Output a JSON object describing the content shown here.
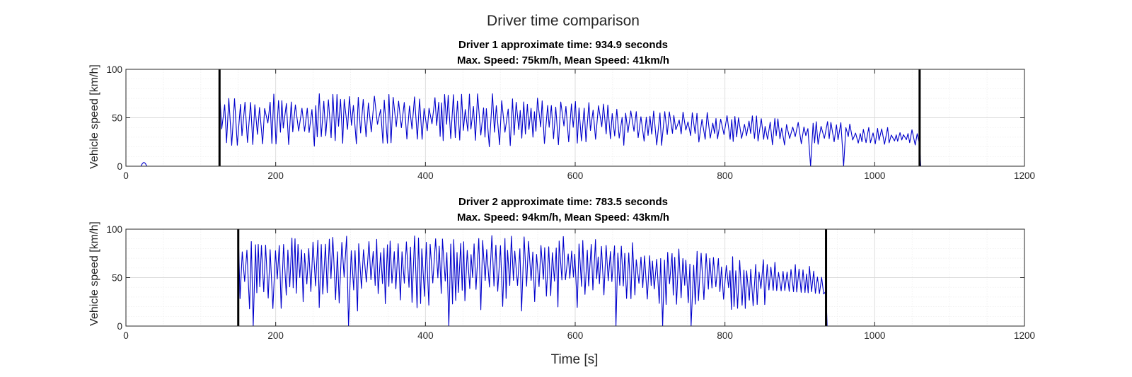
{
  "figure_title": "Driver time comparison",
  "chart_data": [
    {
      "type": "line",
      "title": "Driver 1 approximate time: 934.9 seconds",
      "subtitle": "Max. Speed: 75km/h, Mean Speed: 41km/h",
      "xlabel": "",
      "ylabel": "Vehicle speed [km/h]",
      "xlim": [
        0,
        1200
      ],
      "ylim": [
        0,
        100
      ],
      "xticks": [
        0,
        200,
        400,
        600,
        800,
        1000,
        1200
      ],
      "yticks": [
        0,
        50,
        100
      ],
      "grid": true,
      "line_color": "#0000cc",
      "marker_color": "#000000",
      "markers": [
        125,
        1060
      ],
      "signal": {
        "start": 125,
        "end": 1060,
        "tail_end": 1095,
        "period": 5.2,
        "max_speed": 75,
        "min_speed": 20,
        "late_max": 38,
        "taper_start": 500,
        "bumps": [
          [
            20,
            28,
            4
          ]
        ]
      }
    },
    {
      "type": "line",
      "title": "Driver 2 approximate time: 783.5 seconds",
      "subtitle": "Max. Speed: 94km/h, Mean Speed: 43km/h",
      "xlabel": "Time [s]",
      "ylabel": "Vehicle speed [km/h]",
      "xlim": [
        0,
        1200
      ],
      "ylim": [
        0,
        100
      ],
      "xticks": [
        0,
        200,
        400,
        600,
        800,
        1000,
        1200
      ],
      "yticks": [
        0,
        50,
        100
      ],
      "grid": true,
      "line_color": "#0000cc",
      "marker_color": "#000000",
      "markers": [
        150,
        935
      ],
      "signal": {
        "start": 150,
        "end": 935,
        "tail_end": 950,
        "period": 4.4,
        "max_speed": 94,
        "min_speed": 15,
        "late_max": 60,
        "taper_start": 600,
        "bumps": []
      }
    }
  ]
}
